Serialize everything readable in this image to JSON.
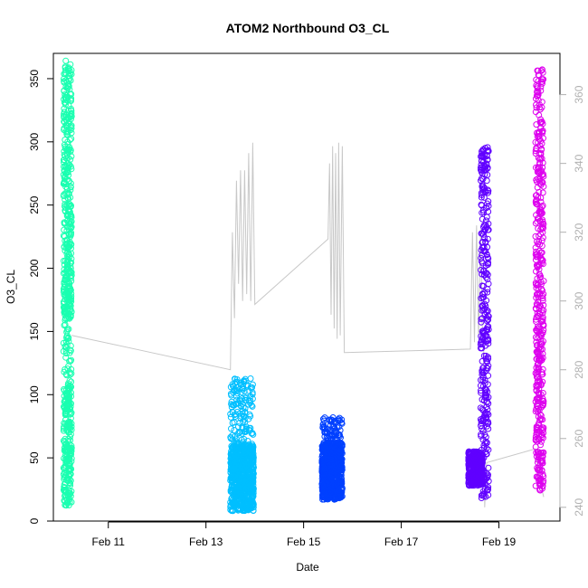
{
  "chart_data": {
    "type": "scatter",
    "title": "ATOM2 Northbound O3_CL",
    "xlabel": "Date",
    "ylabel": "O3_CL",
    "xlim": [
      "2016-02-09T21:00",
      "2016-02-20T06:00"
    ],
    "ylim": [
      0,
      370
    ],
    "x_ticks": [
      {
        "date": "2016-02-11",
        "label": "Feb 11"
      },
      {
        "date": "2016-02-13",
        "label": "Feb 13"
      },
      {
        "date": "2016-02-15",
        "label": "Feb 15"
      },
      {
        "date": "2016-02-17",
        "label": "Feb 17"
      },
      {
        "date": "2016-02-19",
        "label": "Feb 19"
      }
    ],
    "y_ticks": [
      0,
      50,
      100,
      150,
      200,
      250,
      300,
      350
    ],
    "y2_ticks": [
      240,
      260,
      280,
      300,
      320,
      340,
      360
    ],
    "y2lim": [
      236,
      372
    ],
    "grid": false,
    "legend": "none",
    "series": [
      {
        "color": "#1affb0",
        "x_range": [
          "2016-02-10T02:00",
          "2016-02-10T06:00"
        ],
        "clusters": [
          {
            "y_range": [
              12,
              105
            ],
            "count": 240
          },
          {
            "y_range": [
              105,
              200
            ],
            "count": 90
          },
          {
            "y_range": [
              160,
              365
            ],
            "count": 360
          }
        ]
      },
      {
        "color": "#00bfff",
        "x_range": [
          "2016-02-13T12:00",
          "2016-02-13T23:30"
        ],
        "clusters": [
          {
            "y_range": [
              8,
              60
            ],
            "count": 650
          },
          {
            "y_range": [
              30,
              113
            ],
            "count": 220
          }
        ]
      },
      {
        "color": "#0040ff",
        "x_range": [
          "2016-02-15T09:00",
          "2016-02-15T19:00"
        ],
        "clusters": [
          {
            "y_range": [
              17,
              62
            ],
            "count": 700
          },
          {
            "y_range": [
              40,
              82
            ],
            "count": 160
          }
        ]
      },
      {
        "color": "#6000ff",
        "x_range": [
          "2016-02-18T09:00",
          "2016-02-18T16:00"
        ],
        "clusters": [
          {
            "y_range": [
              28,
              55
            ],
            "count": 380
          }
        ]
      },
      {
        "color": "#6000ff",
        "x_range": [
          "2016-02-18T15:00",
          "2016-02-18T19:00"
        ],
        "clusters": [
          {
            "y_range": [
              17,
              297
            ],
            "count": 320
          }
        ]
      },
      {
        "color": "#dd00ee",
        "x_range": [
          "2016-02-19T18:00",
          "2016-02-19T22:00"
        ],
        "clusters": [
          {
            "y_range": [
              22,
              360
            ],
            "count": 460
          }
        ]
      }
    ],
    "secondary_line": {
      "color": "#c8c8c8",
      "y_axis": "right",
      "points": [
        [
          "2016-02-10T06:00",
          290
        ],
        [
          "2016-02-13T12:00",
          280
        ],
        [
          "2016-02-13T13:00",
          320
        ],
        [
          "2016-02-13T14:00",
          295
        ],
        [
          "2016-02-13T15:00",
          335
        ],
        [
          "2016-02-13T16:00",
          305
        ],
        [
          "2016-02-13T17:00",
          338
        ],
        [
          "2016-02-13T18:00",
          300
        ],
        [
          "2016-02-13T19:00",
          338
        ],
        [
          "2016-02-13T20:00",
          302
        ],
        [
          "2016-02-13T21:00",
          343
        ],
        [
          "2016-02-13T22:00",
          300
        ],
        [
          "2016-02-13T23:00",
          346
        ],
        [
          "2016-02-14T00:00",
          299
        ],
        [
          "2016-02-15T12:00",
          318
        ],
        [
          "2016-02-15T12:45",
          340
        ],
        [
          "2016-02-15T13:30",
          296
        ],
        [
          "2016-02-15T14:15",
          345
        ],
        [
          "2016-02-15T15:00",
          292
        ],
        [
          "2016-02-15T15:45",
          343
        ],
        [
          "2016-02-15T16:30",
          289
        ],
        [
          "2016-02-15T17:15",
          346
        ],
        [
          "2016-02-15T18:00",
          290
        ],
        [
          "2016-02-15T19:00",
          345
        ],
        [
          "2016-02-15T20:00",
          285
        ],
        [
          "2016-02-18T10:00",
          286
        ],
        [
          "2016-02-18T11:00",
          320
        ],
        [
          "2016-02-18T12:00",
          288
        ],
        [
          "2016-02-18T13:00",
          322
        ],
        [
          "2016-02-18T14:00",
          289
        ],
        [
          "2016-02-18T15:00",
          321
        ],
        [
          "2016-02-18T16:00",
          288
        ],
        [
          "2016-02-18T16:30",
          287
        ],
        [
          "2016-02-18T17:00",
          240
        ],
        [
          "2016-02-18T18:00",
          253
        ],
        [
          "2016-02-19T18:00",
          257
        ],
        [
          "2016-02-19T20:00",
          248
        ],
        [
          "2016-02-19T22:00",
          243
        ]
      ]
    }
  }
}
